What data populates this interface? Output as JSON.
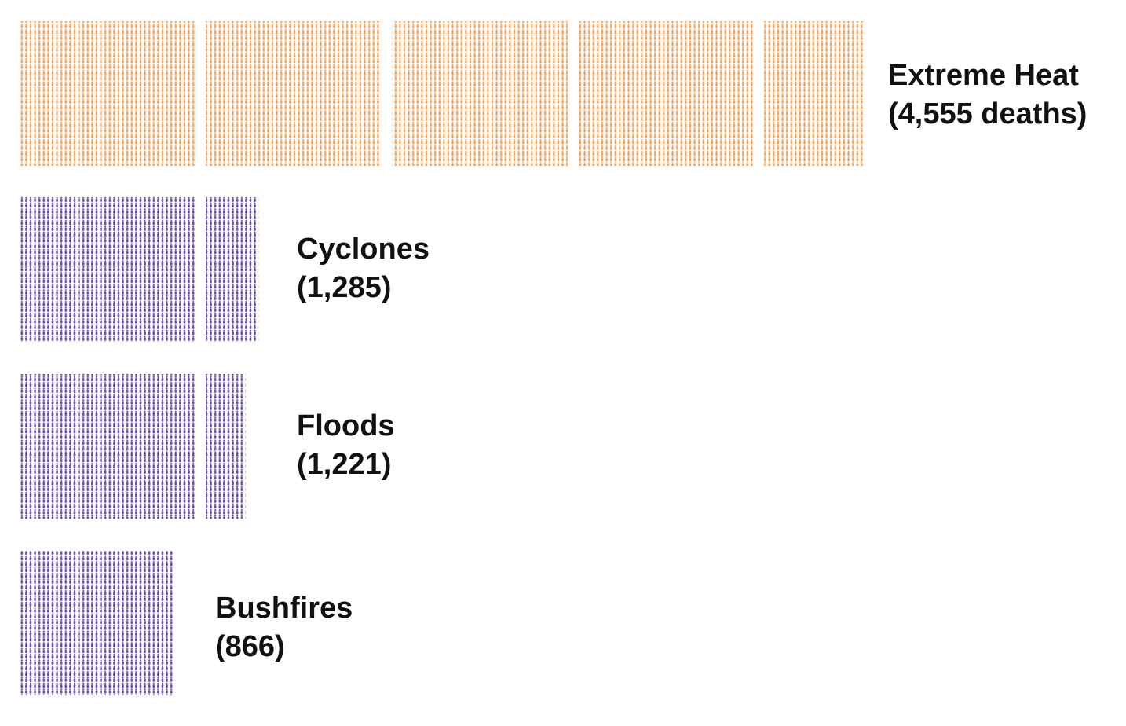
{
  "chart_data": {
    "type": "pictograph",
    "unit": "1 person icon = 1 death",
    "block_size": 1000,
    "colors": {
      "heat": "#F5A35C",
      "other": "#6B4BA8"
    },
    "rows": [
      {
        "id": "heat",
        "name": "Extreme Heat",
        "value": 4555,
        "value_label": "(4,555 deaths)",
        "color_key": "heat"
      },
      {
        "id": "cyclones",
        "name": "Cyclones",
        "value": 1285,
        "value_label": "(1,285)",
        "color_key": "other"
      },
      {
        "id": "floods",
        "name": "Floods",
        "value": 1221,
        "value_label": "(1,221)",
        "color_key": "other"
      },
      {
        "id": "bushfires",
        "name": "Bushfires",
        "value": 866,
        "value_label": "(866)",
        "color_key": "other"
      }
    ]
  }
}
